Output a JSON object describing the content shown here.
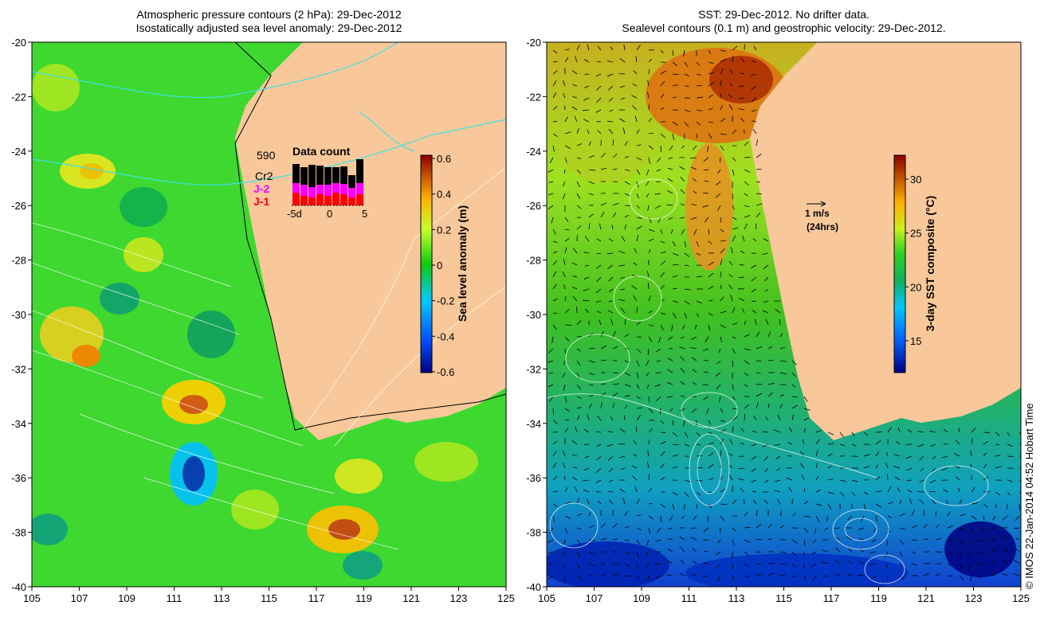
{
  "left_panel": {
    "title_line1": "Atmospheric pressure contours (2 hPa): 29-Dec-2012",
    "title_line2": "Isostatically adjusted sea level anomaly: 29-Dec-2012",
    "colorbar_label": "Sea level anomaly (m)",
    "colorbar_ticks": [
      "0.6",
      "0.4",
      "0.2",
      "0",
      "-0.2",
      "-0.4",
      "-0.6"
    ],
    "inset": {
      "total": "590",
      "title": "Data count",
      "missions": [
        "Cr2",
        "J-2",
        "J-1"
      ],
      "mission_colors": [
        "#000000",
        "#ff00ff",
        "#ff0000"
      ],
      "axis_ticks": [
        "-5d",
        "0",
        "5"
      ]
    }
  },
  "right_panel": {
    "title_line1": "SST: 29-Dec-2012. No drifter data.",
    "title_line2": "Sealevel contours (0.1 m) and geostrophic velocity: 29-Dec-2012.",
    "colorbar_label": "3-day SST composite (°C)",
    "colorbar_ticks": [
      "30",
      "25",
      "20",
      "15"
    ],
    "scale_arrow_label": "1 m/s",
    "scale_arrow_sublabel": "(24hrs)"
  },
  "axes": {
    "lat_ticks": [
      "-20",
      "-22",
      "-24",
      "-26",
      "-28",
      "-30",
      "-32",
      "-34",
      "-36",
      "-38",
      "-40"
    ],
    "lon_ticks": [
      "105",
      "107",
      "109",
      "111",
      "113",
      "115",
      "117",
      "119",
      "121",
      "123",
      "125"
    ]
  },
  "credit": "© IMOS 22-Jan-2014 04:52 Hobart Time",
  "colors": {
    "land": "#f8c89a",
    "coastline": "#000000",
    "pressure_contour": "#40e0e0"
  }
}
